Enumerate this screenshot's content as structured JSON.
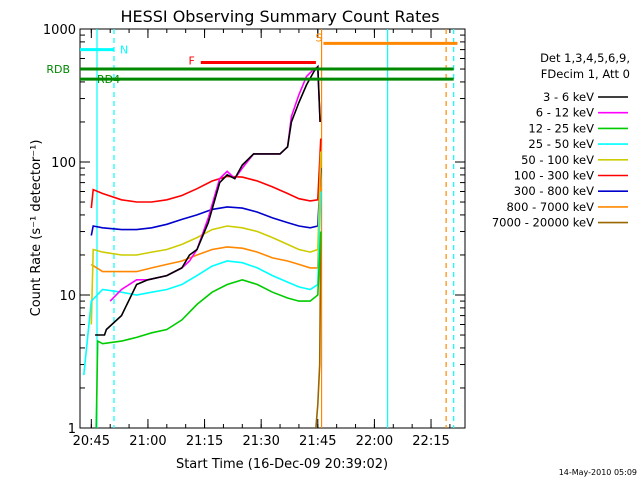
{
  "chart_data": {
    "type": "line",
    "title": "HESSI Observing Summary Count Rates",
    "xlabel": "Start Time (16-Dec-09 20:39:02)",
    "ylabel": "Count Rate (s⁻¹ detector⁻¹)",
    "y_scale": "log",
    "ylim": [
      1,
      1000
    ],
    "xlim_minutes": [
      -3.0,
      99.0
    ],
    "x_ticks": [
      {
        "m": 0,
        "label": "20:45"
      },
      {
        "m": 15,
        "label": "21:00"
      },
      {
        "m": 30,
        "label": "21:15"
      },
      {
        "m": 45,
        "label": "21:30"
      },
      {
        "m": 60,
        "label": "21:45"
      },
      {
        "m": 75,
        "label": "22:00"
      },
      {
        "m": 90,
        "label": "22:15"
      }
    ],
    "y_ticks": [
      {
        "v": 1,
        "label": "1"
      },
      {
        "v": 10,
        "label": "10"
      },
      {
        "v": 100,
        "label": "100"
      },
      {
        "v": 1000,
        "label": "1000"
      }
    ],
    "legend_header": [
      "Det 1,3,4,5,6,9,",
      "FDecim 1, Att 0"
    ],
    "series": [
      {
        "name": "3 - 6 keV",
        "color": "#000000",
        "points": [
          [
            1,
            5
          ],
          [
            3.5,
            5
          ],
          [
            4,
            5.5
          ],
          [
            8,
            7
          ],
          [
            12,
            12
          ],
          [
            15,
            13
          ],
          [
            20,
            14
          ],
          [
            24,
            16
          ],
          [
            26,
            20
          ],
          [
            28,
            22
          ],
          [
            31,
            35
          ],
          [
            34,
            70
          ],
          [
            36,
            80
          ],
          [
            38,
            75
          ],
          [
            40,
            95
          ],
          [
            43,
            115
          ],
          [
            46,
            115
          ],
          [
            50,
            115
          ],
          [
            52,
            130
          ],
          [
            53,
            200
          ],
          [
            55,
            280
          ],
          [
            57,
            380
          ],
          [
            59,
            480
          ],
          [
            60,
            520
          ],
          [
            60.6,
            200
          ]
        ]
      },
      {
        "name": "6 - 12 keV",
        "color": "#ff00ff",
        "points": [
          [
            5,
            9
          ],
          [
            8,
            11
          ],
          [
            12,
            13
          ],
          [
            15,
            13
          ],
          [
            20,
            14
          ],
          [
            24,
            16
          ],
          [
            26,
            18
          ],
          [
            28,
            22
          ],
          [
            31,
            38
          ],
          [
            34,
            75
          ],
          [
            36,
            85
          ],
          [
            38,
            75
          ],
          [
            40,
            90
          ],
          [
            43,
            115
          ],
          [
            46,
            115
          ],
          [
            50,
            115
          ],
          [
            52,
            130
          ],
          [
            53,
            220
          ],
          [
            55,
            320
          ],
          [
            57,
            440
          ],
          [
            59,
            500
          ],
          [
            60,
            520
          ],
          [
            60.6,
            200
          ]
        ]
      },
      {
        "name": "12 - 25 keV",
        "color": "#00cc00",
        "points": [
          [
            1.3,
            1
          ],
          [
            1.7,
            4.5
          ],
          [
            3,
            4.3
          ],
          [
            8,
            4.5
          ],
          [
            12,
            4.8
          ],
          [
            16,
            5.2
          ],
          [
            20,
            5.5
          ],
          [
            24,
            6.5
          ],
          [
            28,
            8.5
          ],
          [
            32,
            10.5
          ],
          [
            36,
            12
          ],
          [
            40,
            13
          ],
          [
            44,
            12
          ],
          [
            48,
            10.5
          ],
          [
            52,
            9.5
          ],
          [
            55,
            9
          ],
          [
            58,
            9
          ],
          [
            60,
            10
          ],
          [
            60.8,
            30
          ]
        ]
      },
      {
        "name": "25 - 50 keV",
        "color": "#00ffff",
        "points": [
          [
            -2,
            2.5
          ],
          [
            0,
            9
          ],
          [
            3,
            11
          ],
          [
            8,
            10.5
          ],
          [
            12,
            10
          ],
          [
            16,
            10.5
          ],
          [
            20,
            11
          ],
          [
            24,
            12
          ],
          [
            28,
            14
          ],
          [
            32,
            16.5
          ],
          [
            36,
            18
          ],
          [
            40,
            17.5
          ],
          [
            44,
            16
          ],
          [
            48,
            14
          ],
          [
            52,
            12.5
          ],
          [
            55,
            11.5
          ],
          [
            58,
            11
          ],
          [
            60,
            12
          ],
          [
            60.8,
            60
          ]
        ]
      },
      {
        "name": "50 - 100 keV",
        "color": "#cccc00",
        "points": [
          [
            0,
            6
          ],
          [
            0.5,
            22
          ],
          [
            3,
            21
          ],
          [
            8,
            20
          ],
          [
            12,
            20
          ],
          [
            16,
            21
          ],
          [
            20,
            22
          ],
          [
            24,
            24
          ],
          [
            28,
            27
          ],
          [
            32,
            31
          ],
          [
            36,
            33
          ],
          [
            40,
            32
          ],
          [
            44,
            30
          ],
          [
            48,
            27
          ],
          [
            52,
            24
          ],
          [
            55,
            22
          ],
          [
            58,
            21
          ],
          [
            60,
            22
          ],
          [
            60.8,
            120
          ]
        ]
      },
      {
        "name": "100 - 300 keV",
        "color": "#ff0000",
        "points": [
          [
            0,
            45
          ],
          [
            0.5,
            62
          ],
          [
            3,
            58
          ],
          [
            8,
            52
          ],
          [
            12,
            50
          ],
          [
            16,
            50
          ],
          [
            20,
            52
          ],
          [
            24,
            56
          ],
          [
            28,
            63
          ],
          [
            32,
            72
          ],
          [
            36,
            78
          ],
          [
            40,
            77
          ],
          [
            44,
            72
          ],
          [
            48,
            65
          ],
          [
            52,
            58
          ],
          [
            55,
            53
          ],
          [
            58,
            51
          ],
          [
            60,
            52
          ],
          [
            60.8,
            150
          ]
        ]
      },
      {
        "name": "300 - 800 keV",
        "color": "#0000cc",
        "points": [
          [
            0,
            28
          ],
          [
            0.5,
            33
          ],
          [
            3,
            32
          ],
          [
            8,
            31
          ],
          [
            12,
            31
          ],
          [
            16,
            32
          ],
          [
            20,
            34
          ],
          [
            24,
            37
          ],
          [
            28,
            40
          ],
          [
            32,
            44
          ],
          [
            36,
            46
          ],
          [
            40,
            45
          ],
          [
            44,
            42
          ],
          [
            48,
            38
          ],
          [
            52,
            35
          ],
          [
            55,
            33
          ],
          [
            58,
            32
          ],
          [
            60,
            33
          ],
          [
            60.8,
            90
          ]
        ]
      },
      {
        "name": "800 - 7000 keV",
        "color": "#ff8800",
        "points": [
          [
            0,
            17
          ],
          [
            3,
            15
          ],
          [
            8,
            15
          ],
          [
            12,
            15
          ],
          [
            16,
            16
          ],
          [
            20,
            17
          ],
          [
            24,
            18
          ],
          [
            28,
            20
          ],
          [
            32,
            22
          ],
          [
            36,
            23
          ],
          [
            40,
            22.5
          ],
          [
            44,
            21
          ],
          [
            48,
            19
          ],
          [
            52,
            18
          ],
          [
            55,
            17
          ],
          [
            58,
            16
          ],
          [
            60,
            16
          ],
          [
            60.8,
            70
          ]
        ]
      },
      {
        "name": "7000 - 20000 keV",
        "color": "#996600",
        "points": [
          [
            59.5,
            1
          ],
          [
            60,
            1.5
          ],
          [
            60.5,
            3
          ],
          [
            60.8,
            30
          ]
        ]
      }
    ],
    "annotations": [
      {
        "label": "N",
        "color": "#00ffff",
        "m_start": -3.0,
        "m_end": 6.0,
        "level": 700
      },
      {
        "label": "F",
        "color": "#ff0000",
        "m_start": 29.0,
        "m_end": 59.5,
        "level": 560
      },
      {
        "label": "S",
        "color": "#ff8800",
        "m_start": 61.5,
        "m_end": 97.0,
        "level": 780
      },
      {
        "label": "RDB",
        "color": "#008800",
        "m_start": -3.0,
        "m_end": 96.0,
        "level": 500
      },
      {
        "label": "RD4",
        "color": "#008800",
        "m_start": -3.0,
        "m_end": 96.0,
        "level": 420
      }
    ],
    "vertical_markers": [
      {
        "m": 1.5,
        "color": "#00ffff",
        "style": "solid"
      },
      {
        "m": 6.0,
        "color": "#00ffff",
        "style": "dashed"
      },
      {
        "m": 61.0,
        "color": "#ff8800",
        "style": "solid"
      },
      {
        "m": 78.5,
        "color": "#00ffff",
        "style": "solid"
      },
      {
        "m": 94.0,
        "color": "#ff8800",
        "style": "dashed"
      },
      {
        "m": 96.0,
        "color": "#00ffff",
        "style": "dashed"
      }
    ],
    "footer_date": "14-May-2010 05:09"
  }
}
